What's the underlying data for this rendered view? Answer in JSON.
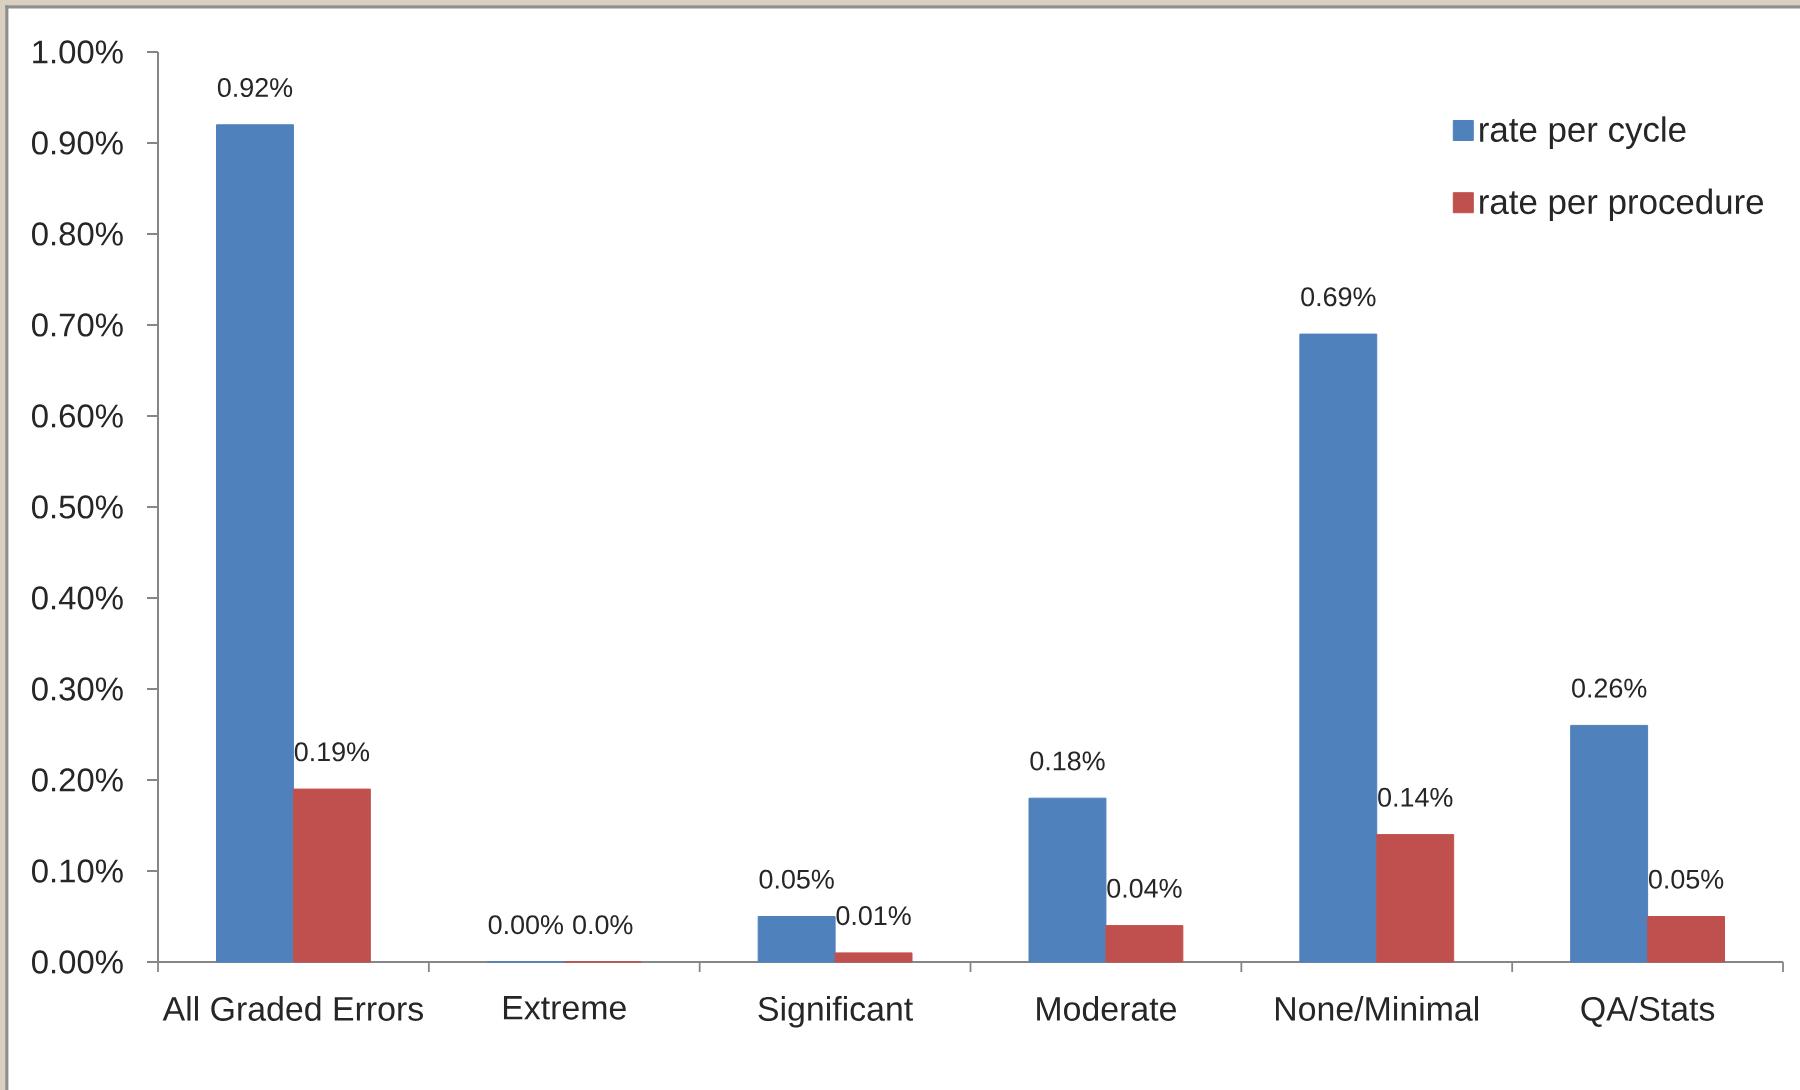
{
  "chart_data": {
    "type": "bar",
    "categories": [
      "All Graded Errors",
      "Extreme",
      "Significant",
      "Moderate",
      "None/Minimal",
      "QA/Stats"
    ],
    "series": [
      {
        "name": "rate per cycle",
        "color": "#4f81bd",
        "values": [
          0.92,
          0,
          0.05,
          0.18,
          0.69,
          0.26
        ],
        "value_labels": [
          "0.92%",
          "0.00%",
          "0.05%",
          "0.18%",
          "0.69%",
          "0.26%"
        ]
      },
      {
        "name": "rate per procedure",
        "color": "#c0504d",
        "values": [
          0.19,
          0,
          0.01,
          0.04,
          0.14,
          0.05
        ],
        "value_labels": [
          "0.19%",
          "0.0%",
          "0.01%",
          "0.04%",
          "0.14%",
          "0.05%"
        ]
      }
    ],
    "ylim": [
      0,
      1
    ],
    "yticks": [
      {
        "value": 0,
        "label": "0.00%"
      },
      {
        "value": 0.1,
        "label": "0.10%"
      },
      {
        "value": 0.2,
        "label": "0.20%"
      },
      {
        "value": 0.3,
        "label": "0.30%"
      },
      {
        "value": 0.4,
        "label": "0.40%"
      },
      {
        "value": 0.5,
        "label": "0.50%"
      },
      {
        "value": 0.6,
        "label": "0.60%"
      },
      {
        "value": 0.7,
        "label": "0.70%"
      },
      {
        "value": 0.8,
        "label": "0.80%"
      },
      {
        "value": 0.9,
        "label": "0.90%"
      },
      {
        "value": 1,
        "label": "1.00%"
      }
    ],
    "legend": "top right"
  }
}
